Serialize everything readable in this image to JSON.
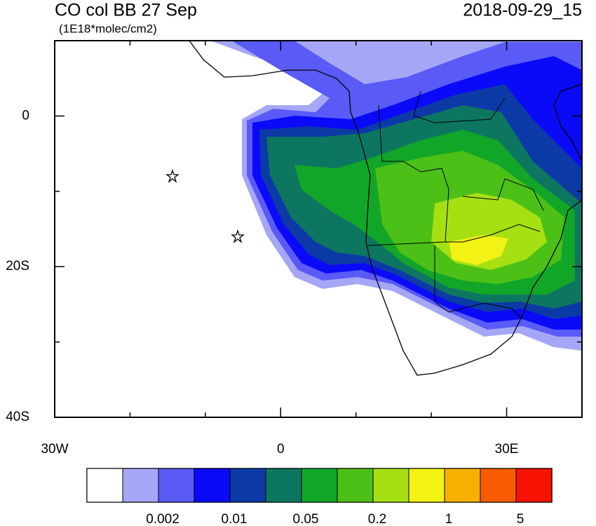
{
  "map": {
    "title": "CO col BB 27 Sep",
    "units": "(1E18*molec/cm2)",
    "timestamp": "2018-09-29_15",
    "lon_range": [
      -30,
      40
    ],
    "lat_range": [
      -40,
      10
    ],
    "lon_ticks": [
      {
        "value": -30,
        "label": "30W"
      },
      {
        "value": -20,
        "label": null
      },
      {
        "value": -10,
        "label": null
      },
      0,
      {
        "value": 10,
        "label": null
      },
      {
        "value": 20,
        "label": null
      },
      {
        "value": 30,
        "label": "30E"
      },
      {
        "value": 40,
        "label": null
      }
    ],
    "lat_ticks": [
      {
        "value": -40,
        "label": "40S"
      },
      {
        "value": -30,
        "label": null
      },
      {
        "value": -20,
        "label": "20S"
      },
      {
        "value": -10,
        "label": null
      },
      0,
      {
        "value": 10,
        "label": null
      }
    ],
    "colorbar": {
      "colors": [
        "#ffffff",
        "#a6a6f6",
        "#5a5af6",
        "#0a0af8",
        "#0b3aa6",
        "#0d7660",
        "#12a628",
        "#4cc016",
        "#a6e012",
        "#f2f214",
        "#f8b000",
        "#f85c00",
        "#f81200"
      ],
      "labels": [
        0.002,
        0.01,
        0.05,
        0.2,
        1,
        5
      ]
    }
  }
}
